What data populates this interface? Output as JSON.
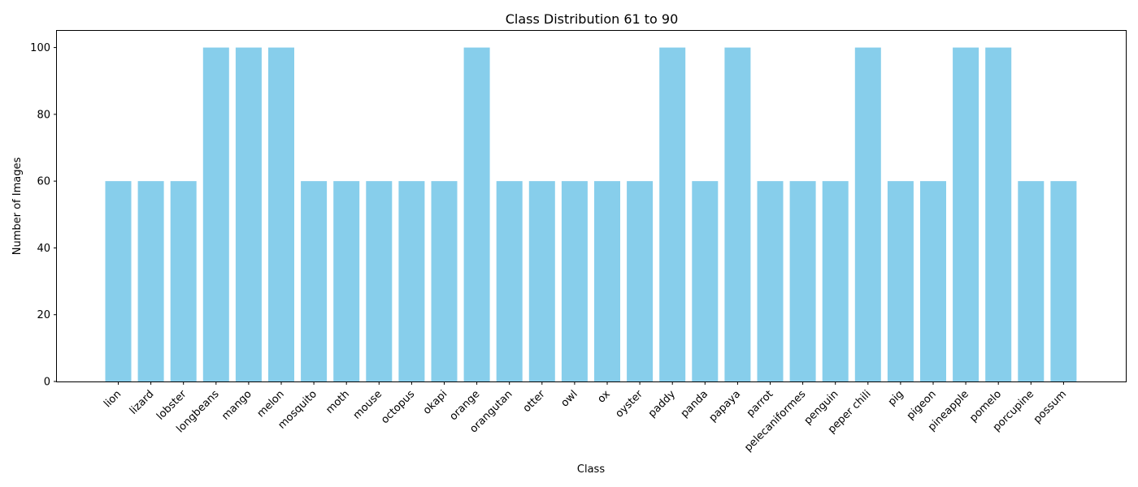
{
  "chart_data": {
    "type": "bar",
    "title": "Class Distribution 61 to 90",
    "xlabel": "Class",
    "ylabel": "Number of Images",
    "ylim": [
      0,
      105
    ],
    "yticks": [
      0,
      20,
      40,
      60,
      80,
      100
    ],
    "grid": false,
    "bar_color": "#87ceeb",
    "categories": [
      "lion",
      "lizard",
      "lobster",
      "longbeans",
      "mango",
      "melon",
      "mosquito",
      "moth",
      "mouse",
      "octopus",
      "okapi",
      "orange",
      "orangutan",
      "otter",
      "owl",
      "ox",
      "oyster",
      "paddy",
      "panda",
      "papaya",
      "parrot",
      "pelecaniformes",
      "penguin",
      "peper chili",
      "pig",
      "pigeon",
      "pineapple",
      "pomelo",
      "porcupine",
      "possum"
    ],
    "values": [
      60,
      60,
      60,
      100,
      100,
      100,
      60,
      60,
      60,
      60,
      60,
      100,
      60,
      60,
      60,
      60,
      60,
      100,
      60,
      100,
      60,
      60,
      60,
      100,
      60,
      60,
      100,
      100,
      60,
      60
    ]
  }
}
